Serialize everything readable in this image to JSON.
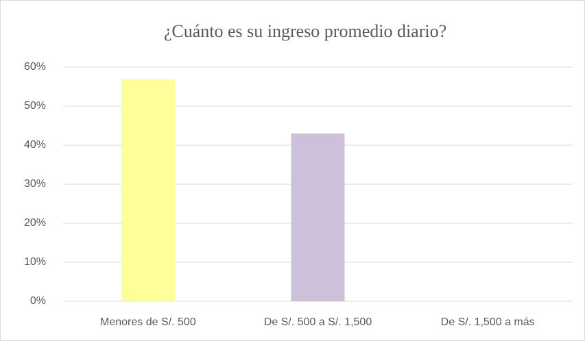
{
  "chart_data": {
    "type": "bar",
    "title": "¿Cuánto es su ingreso promedio diario?",
    "categories": [
      "Menores de S/. 500",
      "De S/. 500 a S/. 1,500",
      "De S/. 1,500 a más"
    ],
    "values": [
      57,
      43,
      0
    ],
    "colors": [
      "#ffff99",
      "#ccc0da",
      null
    ],
    "ylim": [
      0,
      60
    ],
    "yticks": [
      {
        "value": 0,
        "label": "0%"
      },
      {
        "value": 10,
        "label": "10%"
      },
      {
        "value": 20,
        "label": "20%"
      },
      {
        "value": 30,
        "label": "30%"
      },
      {
        "value": 40,
        "label": "40%"
      },
      {
        "value": 50,
        "label": "50%"
      },
      {
        "value": 60,
        "label": "60%"
      }
    ],
    "grid": true
  }
}
